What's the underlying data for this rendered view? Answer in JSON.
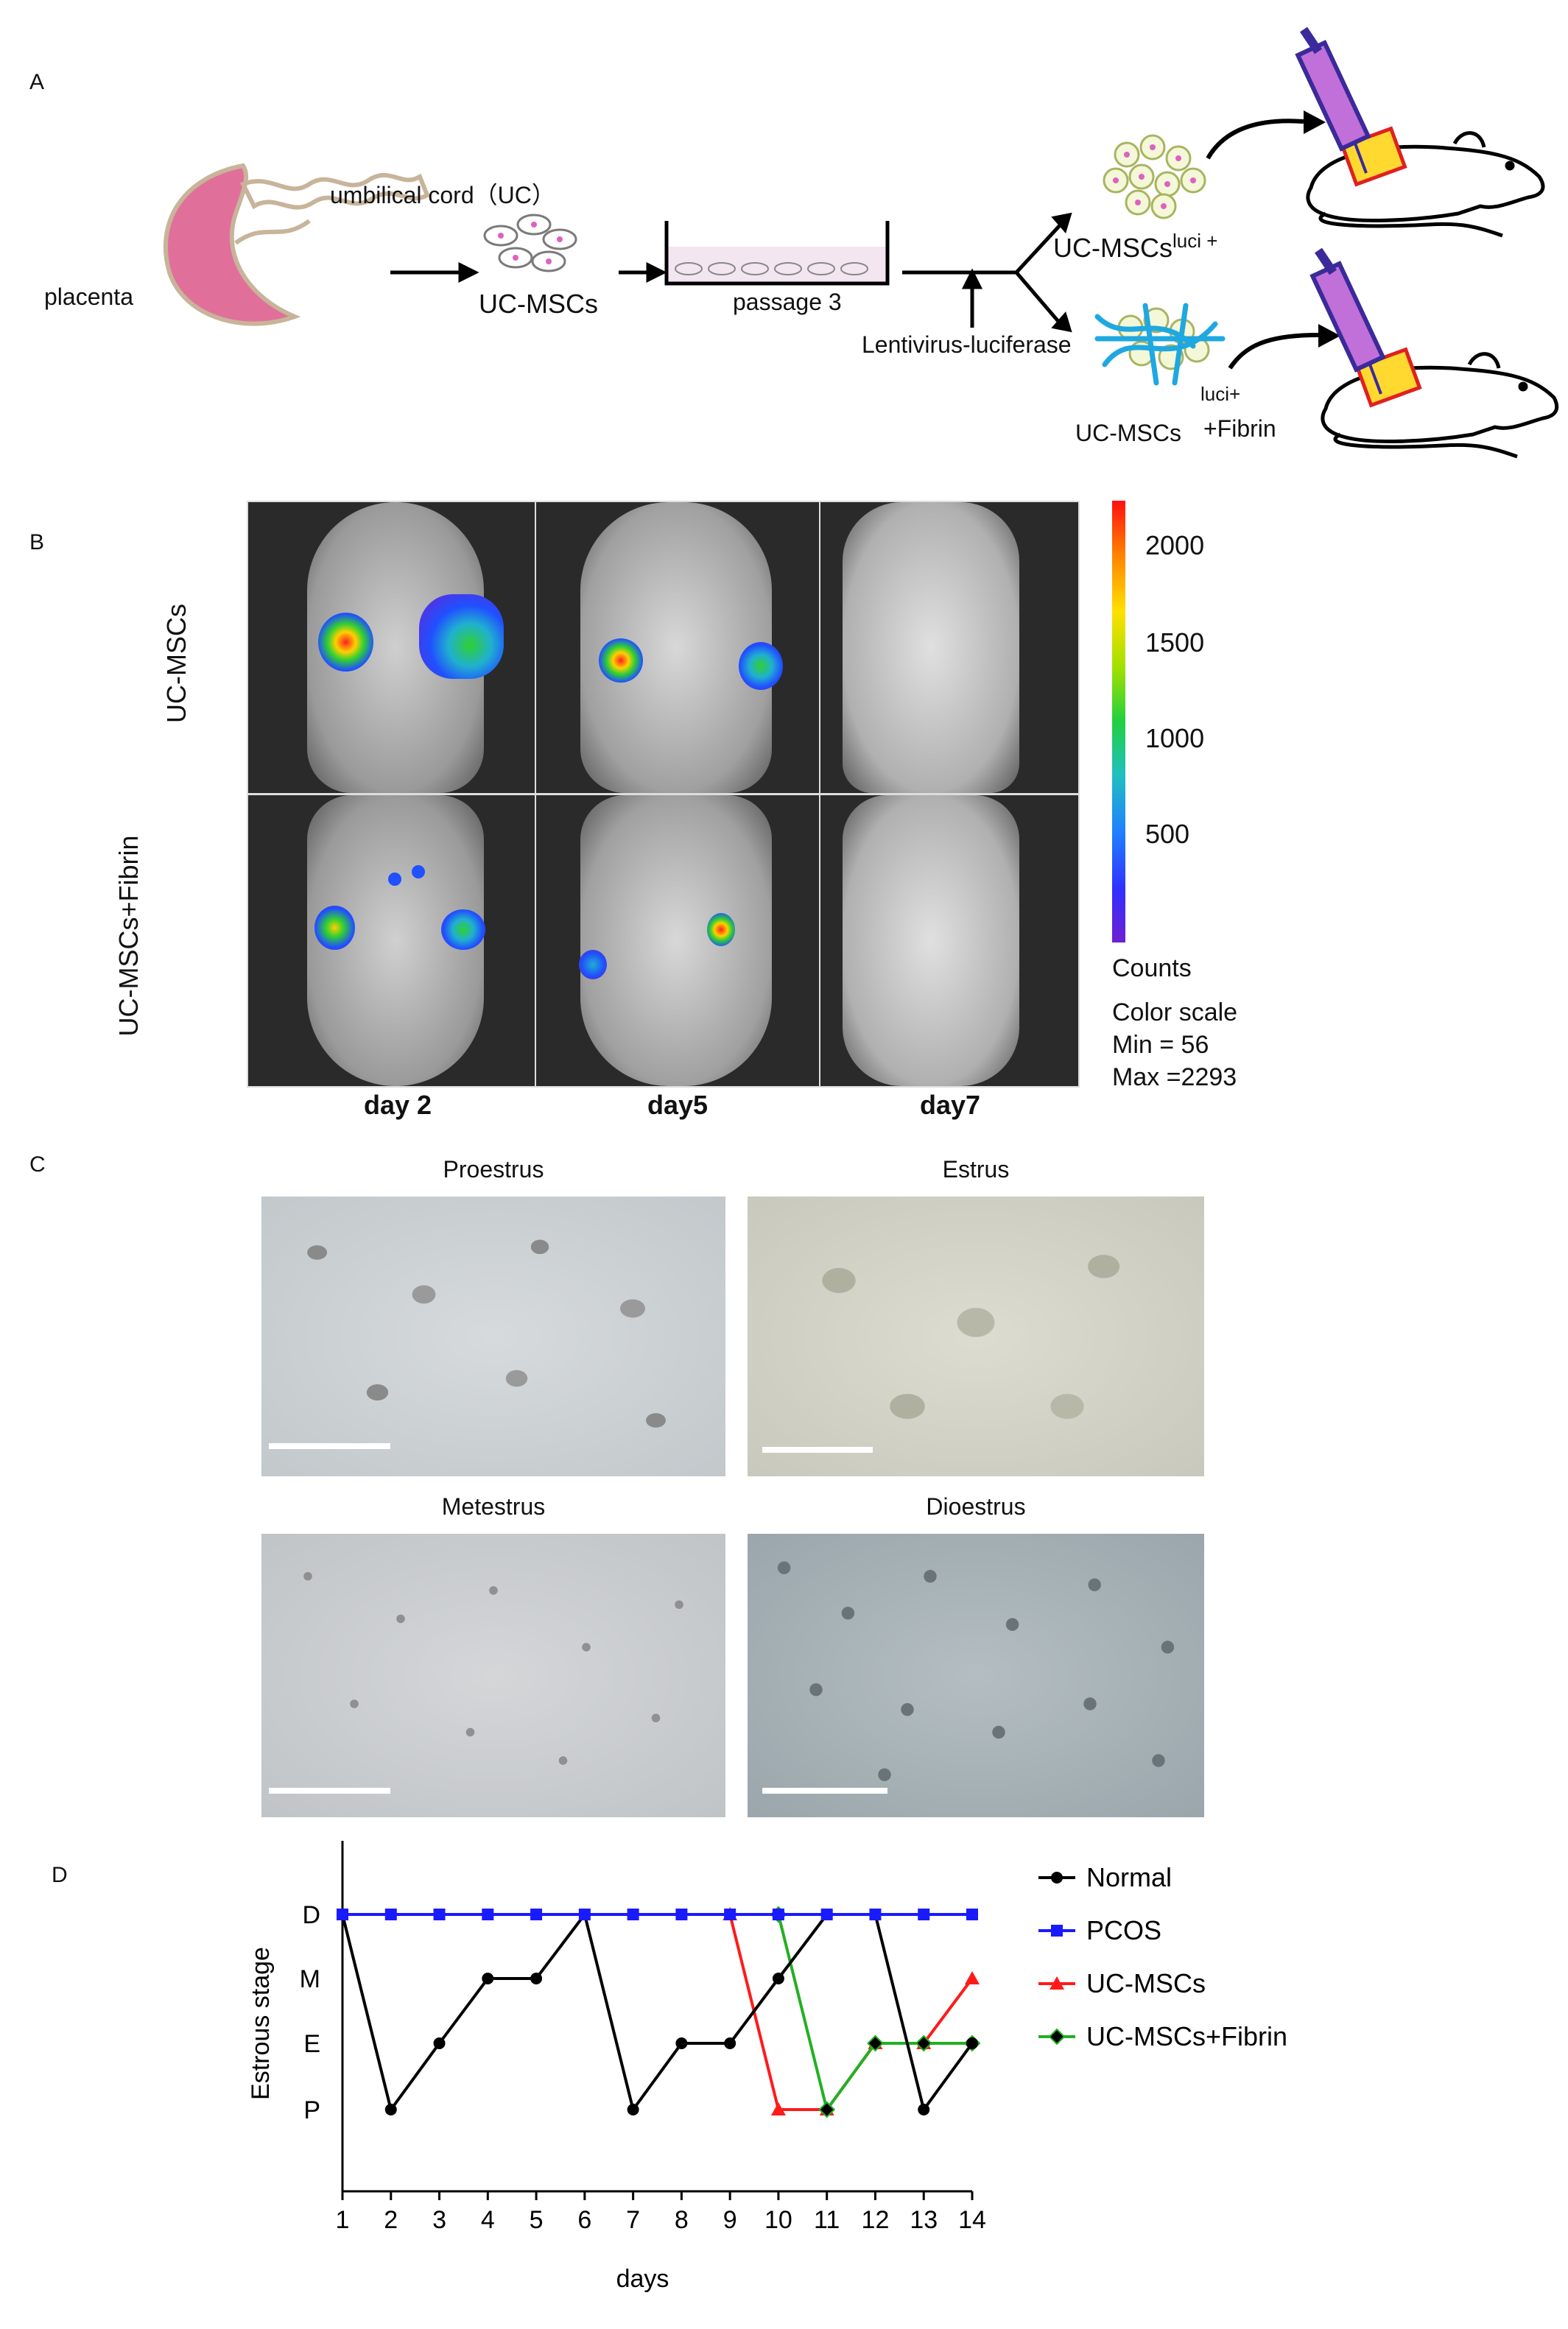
{
  "panels": {
    "a": "A",
    "b": "B",
    "c": "C",
    "d": "D"
  },
  "schematic": {
    "placenta": "placenta",
    "umbilical_cord": "umbilical cord（UC）",
    "uc_mscs": "UC-MSCs",
    "passage": "passage 3",
    "lentivirus": "Lentivirus-luciferase",
    "top_product_main": "UC-MSCs",
    "top_product_sup": "luci +",
    "bottom_product_sup": "luci+",
    "bottom_product_main": "UC-MSCs",
    "bottom_product_suffix": "+Fibrin"
  },
  "imaging": {
    "row_labels": [
      "UC-MSCs",
      "UC-MSCs+Fibrin"
    ],
    "col_labels": [
      "day 2",
      "day5",
      "day7"
    ],
    "colorbar_ticks": [
      "2000",
      "1500",
      "1000",
      "500"
    ],
    "counts": "Counts",
    "color_scale": "Color scale",
    "min": "Min = 56",
    "max": "Max =2293"
  },
  "cytology": {
    "titles": [
      "Proestrus",
      "Estrus",
      "Metestrus",
      "Dioestrus"
    ]
  },
  "colors": {
    "normal": "#000000",
    "pcos": "#1a1aff",
    "uc_mscs": "#ff1a1a",
    "uc_mscs_fibrin": "#22b022",
    "placenta": "#e0709a",
    "syringe": "#3a2a9a",
    "scale_bar": "#ffffff"
  },
  "chart_data": {
    "type": "line",
    "xlabel": "days",
    "ylabel": "Estrous stage",
    "x": [
      1,
      2,
      3,
      4,
      5,
      6,
      7,
      8,
      9,
      10,
      11,
      12,
      13,
      14
    ],
    "xlim": [
      1,
      14
    ],
    "y_categories": [
      "P",
      "E",
      "M",
      "D"
    ],
    "series": [
      {
        "name": "Normal",
        "color": "#000000",
        "marker": "circle",
        "values": [
          "D",
          "P",
          "E",
          "M",
          "M",
          "D",
          "P",
          "E",
          "E",
          "M",
          "D",
          "D",
          "P",
          "E"
        ]
      },
      {
        "name": "PCOS",
        "color": "#1a1aff",
        "marker": "square",
        "values": [
          "D",
          "D",
          "D",
          "D",
          "D",
          "D",
          "D",
          "D",
          "D",
          "D",
          "D",
          "D",
          "D",
          "D"
        ]
      },
      {
        "name": "UC-MSCs",
        "color": "#ff1a1a",
        "marker": "triangle",
        "values": [
          "D",
          "D",
          "D",
          "D",
          "D",
          "D",
          "D",
          "D",
          "D",
          "P",
          "P",
          "E",
          "E",
          "M"
        ]
      },
      {
        "name": "UC-MSCs+Fibrin",
        "color": "#22b022",
        "marker": "diamond",
        "values": [
          "D",
          "D",
          "D",
          "D",
          "D",
          "D",
          "D",
          "D",
          "D",
          "D",
          "P",
          "E",
          "E",
          "E"
        ]
      }
    ],
    "legend_position": "top-right",
    "grid": false
  }
}
